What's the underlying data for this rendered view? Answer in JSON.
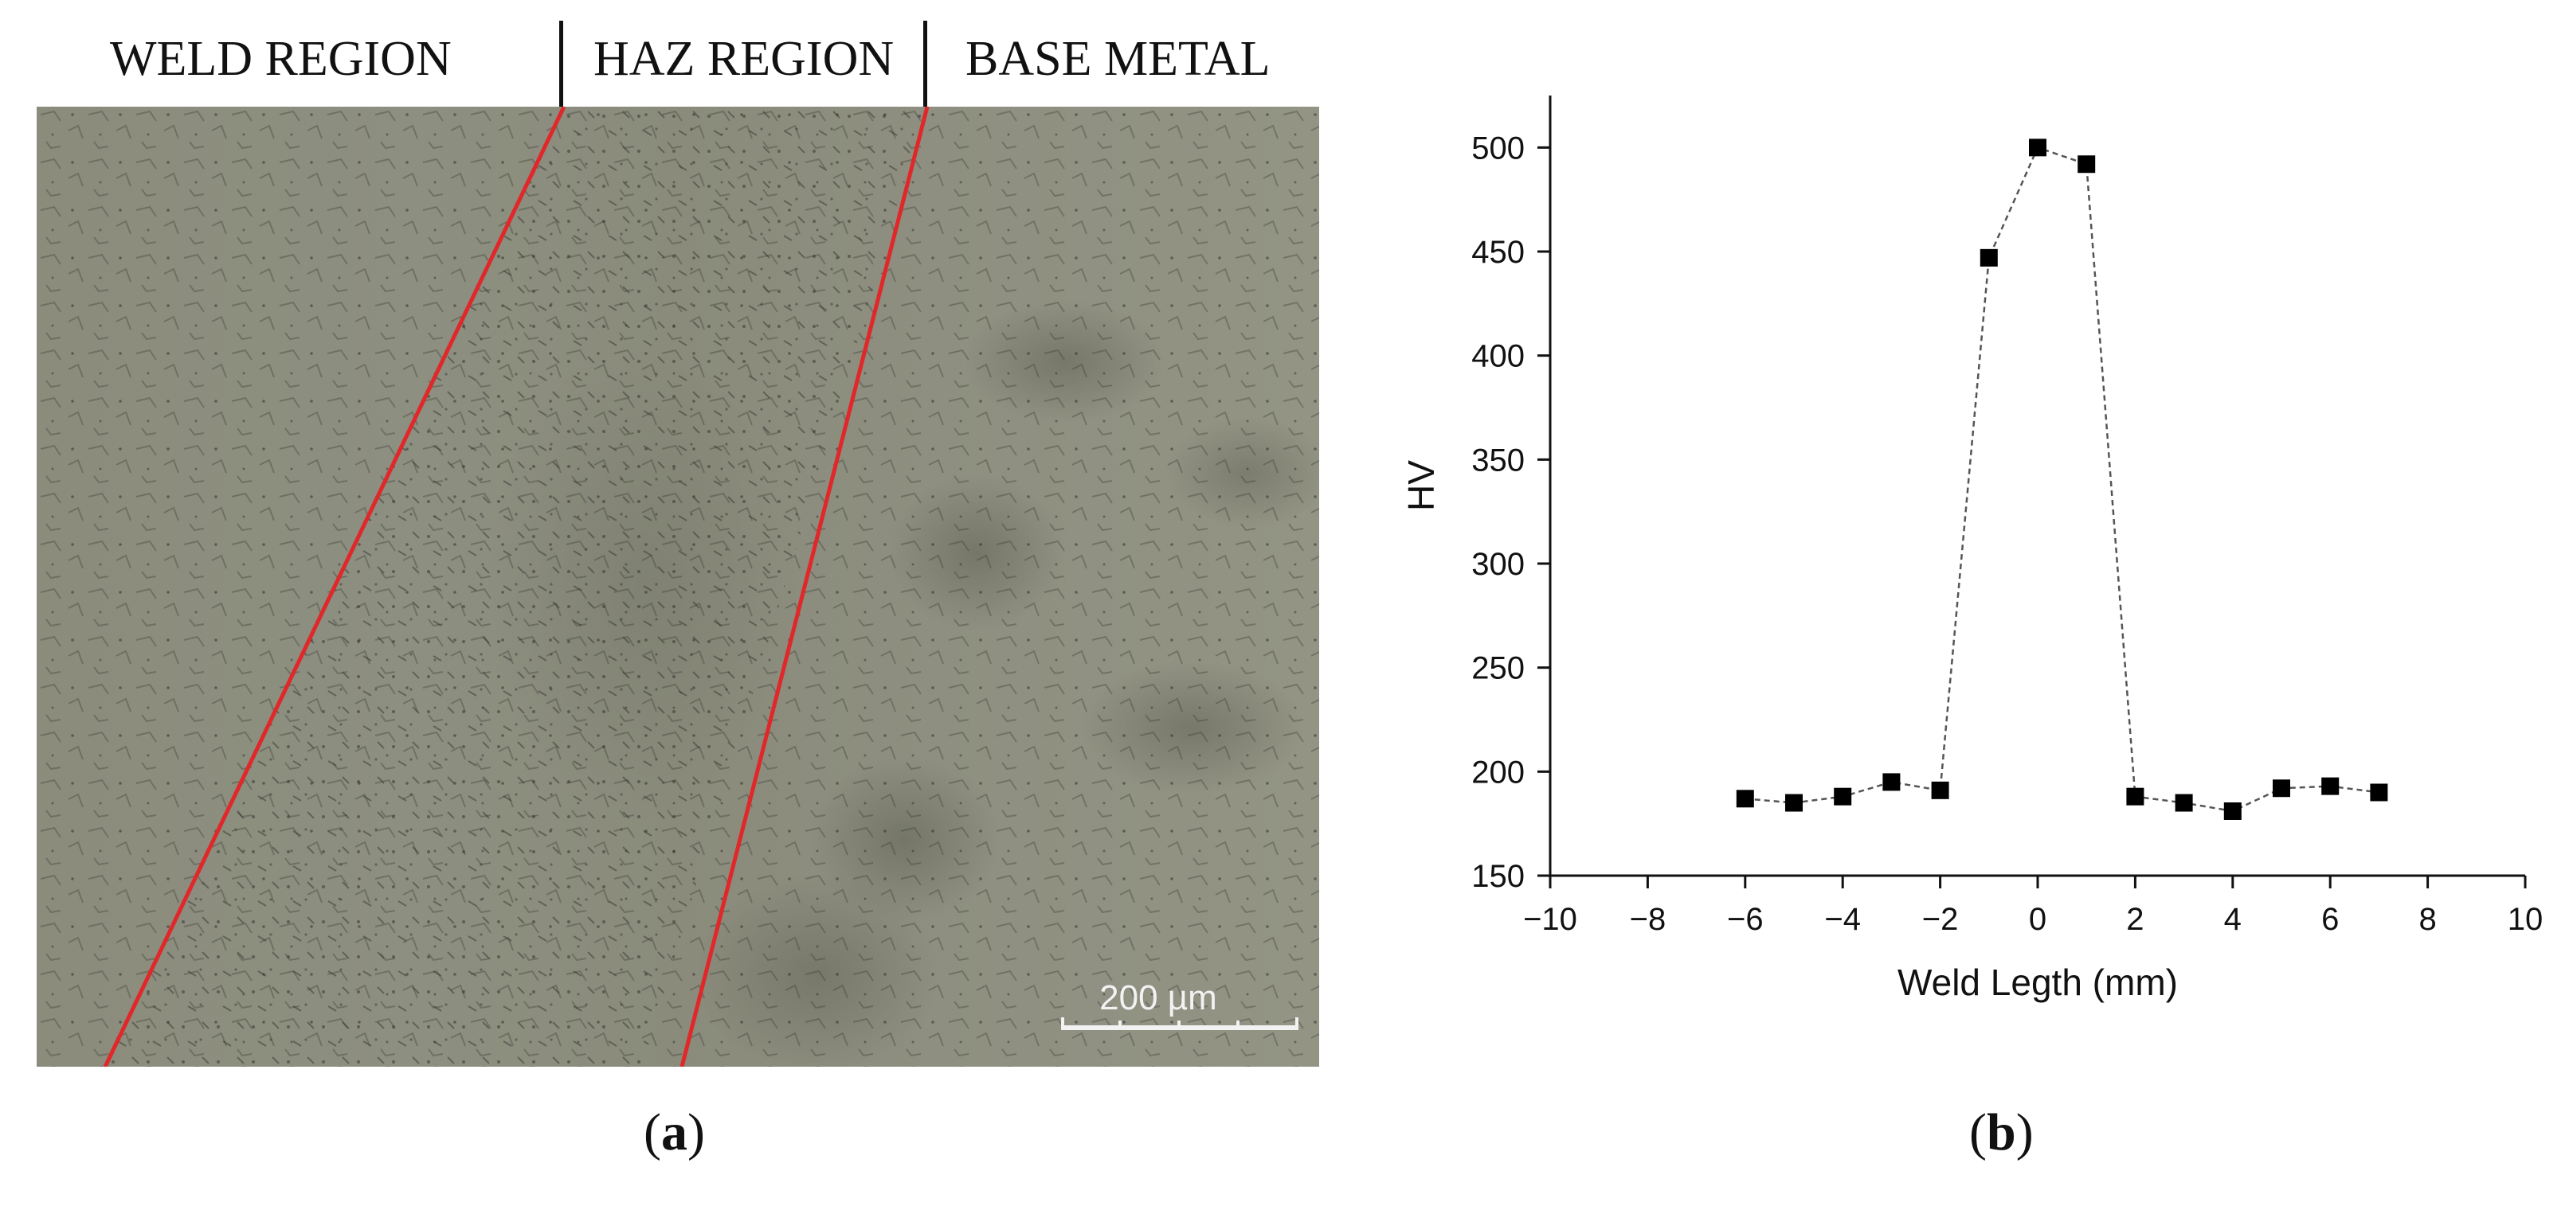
{
  "panel_a": {
    "labels": {
      "weld": "WELD REGION",
      "haz": "HAZ REGION",
      "base": "BASE METAL"
    },
    "scale_bar_label": "200 µm",
    "boundary_line_color": "#e0282a",
    "caption": {
      "open": "(",
      "letter": "a",
      "close": ")"
    }
  },
  "panel_b": {
    "caption": {
      "open": "(",
      "letter": "b",
      "close": ")"
    }
  },
  "chart_data": {
    "type": "scatter",
    "connected": true,
    "marker": "filled-square",
    "title": "",
    "xlabel": "Weld Legth (mm)",
    "ylabel": "HV",
    "xlim": [
      -10,
      10
    ],
    "ylim": [
      150,
      525
    ],
    "xticks": [
      -10,
      -8,
      -6,
      -4,
      -2,
      0,
      2,
      4,
      6,
      8,
      10
    ],
    "xtick_labels": [
      "−10",
      "−8",
      "−6",
      "−4",
      "−2",
      "0",
      "2",
      "4",
      "6",
      "8",
      "10"
    ],
    "yticks": [
      150,
      200,
      250,
      300,
      350,
      400,
      450,
      500
    ],
    "grid": false,
    "legend": "none",
    "series": [
      {
        "x": [
          -6,
          -5,
          -4,
          -3,
          -2,
          -1,
          0,
          1,
          2,
          3,
          4,
          5,
          6,
          7
        ],
        "y": [
          187,
          185,
          188,
          195,
          191,
          447,
          500,
          492,
          188,
          185,
          181,
          192,
          193,
          190
        ]
      }
    ]
  }
}
